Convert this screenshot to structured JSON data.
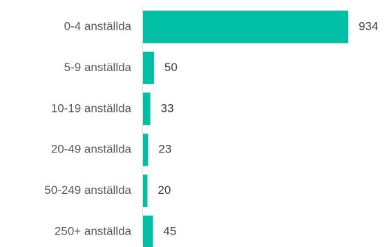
{
  "chart_data": {
    "type": "bar",
    "orientation": "horizontal",
    "categories": [
      "0-4 anställda",
      "5-9 anställda",
      "10-19 anställda",
      "20-49 anställda",
      "50-249 anställda",
      "250+ anställda"
    ],
    "values": [
      934,
      50,
      33,
      23,
      20,
      45
    ],
    "data_labels": [
      "934",
      "50",
      "33",
      "23",
      "20",
      "45"
    ],
    "bar_color": "#00BFA5",
    "axis_color": "#D9D9D9",
    "grid": false,
    "legend": "none"
  }
}
